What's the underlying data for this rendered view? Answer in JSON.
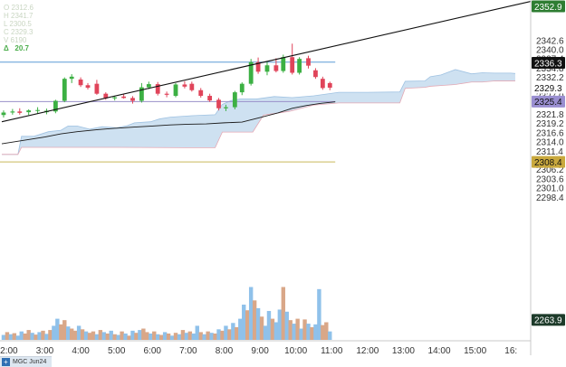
{
  "ohlc_readout": {
    "open": "O 2312.6",
    "high": "H 2341.7",
    "low": "L 2300.5",
    "close": "C 2329.3",
    "volume": "V 6190",
    "delta_symbol": "Δ",
    "delta": "20.7"
  },
  "symbol_bar": {
    "label": "MGC Jun24"
  },
  "colors": {
    "bullish": "#3cb043",
    "bearish": "#e0445a",
    "cloud": "#c6dcef",
    "cloud_edge": "#e4a8b4",
    "baseline": "#1a1a1a",
    "trendline": "#111111",
    "hline_blue": "#5b9bd5",
    "hline_purple": "#9a90c8",
    "hline_gold": "#c9b95a",
    "volume_up": "#8fc1ea",
    "volume_down": "#d9a788"
  },
  "chart_data": {
    "type": "candlestick",
    "y_axis": {
      "range": [
        2258,
        2354
      ],
      "ticks": [
        2342.6,
        2340.0,
        2337.4,
        2334.8,
        2332.2,
        2329.6,
        2327.0,
        2324.4,
        2321.8,
        2319.2,
        2316.6,
        2314.0,
        2311.4,
        2308.8,
        2306.2,
        2303.6,
        2301.0,
        2298.4
      ],
      "tick_labels": [
        "2342.6",
        "2340.0",
        "2337.4",
        "2334.8",
        "2332.2",
        "",
        "2327.0",
        "",
        "2321.8",
        "2319.2",
        "2316.6",
        "2314.0",
        "2311.4",
        "",
        "2306.2",
        "2303.6",
        "2301.0",
        "2298.4"
      ]
    },
    "price_tags": [
      {
        "value": 2352.9,
        "label": "2352.9",
        "style": "green"
      },
      {
        "value": 2336.3,
        "label": "2336.3",
        "style": "black"
      },
      {
        "value": 2329.3,
        "label": "2329.3",
        "style": "plain"
      },
      {
        "value": 2325.4,
        "label": "2325.4",
        "style": "purple"
      },
      {
        "value": 2308.4,
        "label": "2308.4",
        "style": "gold"
      },
      {
        "value": 2263.9,
        "label": "2263.9",
        "style": "dark"
      }
    ],
    "x_axis": {
      "range": [
        1.75,
        16.55
      ],
      "ticks": [
        2,
        3,
        4,
        5,
        6,
        7,
        8,
        9,
        10,
        11,
        12,
        13,
        14,
        15,
        16
      ],
      "tick_labels": [
        "2:00",
        "3:00",
        "4:00",
        "5:00",
        "6:00",
        "7:00",
        "8:00",
        "9:00",
        "10:00",
        "11:00",
        "12:00",
        "13:00",
        "14:00",
        "15:00",
        "16:"
      ]
    },
    "horizontal_lines": [
      {
        "value": 2336.5,
        "color_key": "hline_blue",
        "x_end": 11.1
      },
      {
        "value": 2325.4,
        "color_key": "hline_purple",
        "x_end": 11.1
      },
      {
        "value": 2308.4,
        "color_key": "hline_gold",
        "x_end": 11.1
      }
    ],
    "trendline": {
      "from": [
        1.8,
        2319.7
      ],
      "to": [
        16.55,
        2353.6
      ]
    },
    "candles": [
      {
        "t": 1.85,
        "o": 2321.6,
        "h": 2322.9,
        "l": 2320.9,
        "c": 2322.3
      },
      {
        "t": 2.1,
        "o": 2322.3,
        "h": 2323.3,
        "l": 2321.7,
        "c": 2322.6
      },
      {
        "t": 2.3,
        "o": 2322.6,
        "h": 2323.5,
        "l": 2321.7,
        "c": 2322.2
      },
      {
        "t": 2.55,
        "o": 2322.4,
        "h": 2323.2,
        "l": 2321.6,
        "c": 2322.9
      },
      {
        "t": 2.8,
        "o": 2322.9,
        "h": 2323.8,
        "l": 2322.0,
        "c": 2323.0
      },
      {
        "t": 3.05,
        "o": 2322.4,
        "h": 2323.4,
        "l": 2321.8,
        "c": 2322.8
      },
      {
        "t": 3.3,
        "o": 2322.6,
        "h": 2325.9,
        "l": 2322.1,
        "c": 2325.6
      },
      {
        "t": 3.55,
        "o": 2325.6,
        "h": 2332.2,
        "l": 2325.2,
        "c": 2331.8
      },
      {
        "t": 3.75,
        "o": 2331.8,
        "h": 2333.1,
        "l": 2330.6,
        "c": 2332.4
      },
      {
        "t": 4.0,
        "o": 2331.6,
        "h": 2332.2,
        "l": 2329.5,
        "c": 2330.0
      },
      {
        "t": 4.2,
        "o": 2330.0,
        "h": 2330.6,
        "l": 2328.8,
        "c": 2329.3
      },
      {
        "t": 4.45,
        "o": 2330.4,
        "h": 2331.5,
        "l": 2327.3,
        "c": 2327.6
      },
      {
        "t": 4.7,
        "o": 2327.6,
        "h": 2328.0,
        "l": 2325.9,
        "c": 2326.3
      },
      {
        "t": 4.95,
        "o": 2326.3,
        "h": 2327.0,
        "l": 2325.7,
        "c": 2326.6
      },
      {
        "t": 5.2,
        "o": 2326.8,
        "h": 2327.4,
        "l": 2326.2,
        "c": 2326.4
      },
      {
        "t": 5.45,
        "o": 2326.4,
        "h": 2326.9,
        "l": 2324.8,
        "c": 2325.6
      },
      {
        "t": 5.7,
        "o": 2325.6,
        "h": 2330.6,
        "l": 2325.1,
        "c": 2329.4
      },
      {
        "t": 5.9,
        "o": 2329.4,
        "h": 2331.0,
        "l": 2328.9,
        "c": 2330.3
      },
      {
        "t": 6.15,
        "o": 2330.3,
        "h": 2330.9,
        "l": 2327.1,
        "c": 2327.6
      },
      {
        "t": 6.4,
        "o": 2327.6,
        "h": 2328.2,
        "l": 2326.6,
        "c": 2327.3
      },
      {
        "t": 6.65,
        "o": 2327.0,
        "h": 2330.6,
        "l": 2326.6,
        "c": 2330.2
      },
      {
        "t": 6.9,
        "o": 2330.2,
        "h": 2331.1,
        "l": 2329.1,
        "c": 2329.6
      },
      {
        "t": 7.1,
        "o": 2330.4,
        "h": 2331.0,
        "l": 2328.2,
        "c": 2328.6
      },
      {
        "t": 7.35,
        "o": 2328.6,
        "h": 2329.2,
        "l": 2326.5,
        "c": 2327.0
      },
      {
        "t": 7.6,
        "o": 2327.0,
        "h": 2327.6,
        "l": 2325.3,
        "c": 2325.7
      },
      {
        "t": 7.85,
        "o": 2325.9,
        "h": 2326.4,
        "l": 2322.9,
        "c": 2323.5
      },
      {
        "t": 8.05,
        "o": 2323.5,
        "h": 2324.5,
        "l": 2322.7,
        "c": 2323.8
      },
      {
        "t": 8.3,
        "o": 2323.8,
        "h": 2328.4,
        "l": 2323.2,
        "c": 2328.0
      },
      {
        "t": 8.5,
        "o": 2328.0,
        "h": 2330.8,
        "l": 2327.2,
        "c": 2330.4
      },
      {
        "t": 8.75,
        "o": 2330.4,
        "h": 2337.4,
        "l": 2329.9,
        "c": 2336.5
      },
      {
        "t": 8.95,
        "o": 2336.5,
        "h": 2337.8,
        "l": 2333.2,
        "c": 2333.8
      },
      {
        "t": 9.2,
        "o": 2333.8,
        "h": 2336.6,
        "l": 2332.8,
        "c": 2335.6
      },
      {
        "t": 9.45,
        "o": 2335.6,
        "h": 2337.6,
        "l": 2333.6,
        "c": 2334.0
      },
      {
        "t": 9.65,
        "o": 2334.0,
        "h": 2338.6,
        "l": 2333.5,
        "c": 2337.9
      },
      {
        "t": 9.9,
        "o": 2337.9,
        "h": 2341.7,
        "l": 2333.0,
        "c": 2333.5
      },
      {
        "t": 10.1,
        "o": 2333.5,
        "h": 2337.9,
        "l": 2333.0,
        "c": 2337.4
      },
      {
        "t": 10.35,
        "o": 2337.6,
        "h": 2338.3,
        "l": 2334.7,
        "c": 2335.5
      },
      {
        "t": 10.55,
        "o": 2334.2,
        "h": 2334.8,
        "l": 2331.8,
        "c": 2332.3
      },
      {
        "t": 10.75,
        "o": 2331.8,
        "h": 2332.4,
        "l": 2328.7,
        "c": 2329.2
      },
      {
        "t": 10.95,
        "o": 2330.6,
        "h": 2331.0,
        "l": 2328.6,
        "c": 2329.3
      }
    ],
    "cloud": {
      "upper": [
        [
          1.8,
          2310.5
        ],
        [
          2.25,
          2310.5
        ],
        [
          2.35,
          2315.6
        ],
        [
          2.7,
          2315.6
        ],
        [
          3.1,
          2316.9
        ],
        [
          3.45,
          2317.3
        ],
        [
          3.65,
          2318.5
        ],
        [
          3.9,
          2318.5
        ],
        [
          4.25,
          2317.6
        ],
        [
          4.6,
          2318.3
        ],
        [
          5.0,
          2318.0
        ],
        [
          5.3,
          2318.6
        ],
        [
          5.5,
          2319.4
        ],
        [
          5.95,
          2319.7
        ],
        [
          6.2,
          2320.5
        ],
        [
          6.5,
          2321.0
        ],
        [
          7.1,
          2321.4
        ],
        [
          7.75,
          2321.7
        ],
        [
          7.95,
          2324.6
        ],
        [
          8.2,
          2325.7
        ],
        [
          8.45,
          2326.1
        ],
        [
          8.9,
          2326.1
        ],
        [
          9.4,
          2326.8
        ],
        [
          9.9,
          2326.5
        ],
        [
          10.5,
          2327.0
        ],
        [
          11.2,
          2328.0
        ],
        [
          12.0,
          2328.0
        ],
        [
          12.9,
          2328.1
        ],
        [
          13.05,
          2331.1
        ],
        [
          13.6,
          2331.2
        ],
        [
          13.75,
          2332.4
        ],
        [
          14.05,
          2332.9
        ],
        [
          14.45,
          2334.4
        ],
        [
          14.9,
          2333.2
        ],
        [
          15.2,
          2333.5
        ],
        [
          15.55,
          2333.4
        ],
        [
          16.0,
          2333.4
        ],
        [
          16.12,
          2333.3
        ]
      ],
      "lower": [
        [
          1.8,
          2310.5
        ],
        [
          2.25,
          2310.5
        ],
        [
          2.35,
          2312.5
        ],
        [
          4.5,
          2312.5
        ],
        [
          5.0,
          2312.5
        ],
        [
          6.9,
          2312.4
        ],
        [
          7.75,
          2312.4
        ],
        [
          7.95,
          2316.8
        ],
        [
          8.8,
          2316.8
        ],
        [
          9.1,
          2321.6
        ],
        [
          9.8,
          2322.6
        ],
        [
          10.5,
          2324.4
        ],
        [
          11.2,
          2325.0
        ],
        [
          12.0,
          2325.0
        ],
        [
          12.9,
          2325.0
        ],
        [
          13.05,
          2329.1
        ],
        [
          13.6,
          2329.4
        ],
        [
          13.75,
          2329.7
        ],
        [
          14.05,
          2329.9
        ],
        [
          14.45,
          2330.2
        ],
        [
          14.9,
          2330.9
        ],
        [
          15.2,
          2330.9
        ],
        [
          15.55,
          2331.2
        ],
        [
          16.12,
          2331.2
        ]
      ]
    },
    "baseline": [
      [
        1.8,
        2313.5
      ],
      [
        2.5,
        2314.6
      ],
      [
        3.0,
        2315.4
      ],
      [
        3.45,
        2316.3
      ],
      [
        3.9,
        2316.9
      ],
      [
        4.5,
        2317.5
      ],
      [
        5.0,
        2317.9
      ],
      [
        5.5,
        2318.2
      ],
      [
        6.0,
        2318.5
      ],
      [
        6.5,
        2318.8
      ],
      [
        7.0,
        2319.0
      ],
      [
        7.5,
        2319.1
      ],
      [
        8.0,
        2319.4
      ],
      [
        8.5,
        2319.6
      ],
      [
        9.05,
        2321.0
      ],
      [
        9.5,
        2322.2
      ],
      [
        9.9,
        2323.5
      ],
      [
        10.3,
        2324.3
      ],
      [
        10.7,
        2324.9
      ],
      [
        11.1,
        2325.3
      ]
    ],
    "volume": {
      "y_range": [
        0,
        1000
      ],
      "bars": [
        {
          "t": 1.85,
          "v": 70,
          "up": true
        },
        {
          "t": 1.95,
          "v": 110,
          "up": false
        },
        {
          "t": 2.05,
          "v": 80,
          "up": true
        },
        {
          "t": 2.15,
          "v": 95,
          "up": false
        },
        {
          "t": 2.25,
          "v": 60,
          "up": true
        },
        {
          "t": 2.35,
          "v": 120,
          "up": true
        },
        {
          "t": 2.45,
          "v": 90,
          "up": false
        },
        {
          "t": 2.55,
          "v": 140,
          "up": false
        },
        {
          "t": 2.65,
          "v": 100,
          "up": true
        },
        {
          "t": 2.75,
          "v": 75,
          "up": false
        },
        {
          "t": 2.85,
          "v": 110,
          "up": true
        },
        {
          "t": 2.95,
          "v": 130,
          "up": false
        },
        {
          "t": 3.05,
          "v": 85,
          "up": true
        },
        {
          "t": 3.15,
          "v": 140,
          "up": false
        },
        {
          "t": 3.25,
          "v": 200,
          "up": true
        },
        {
          "t": 3.35,
          "v": 300,
          "up": true
        },
        {
          "t": 3.45,
          "v": 220,
          "up": false
        },
        {
          "t": 3.55,
          "v": 280,
          "up": false
        },
        {
          "t": 3.65,
          "v": 190,
          "up": true
        },
        {
          "t": 3.75,
          "v": 160,
          "up": false
        },
        {
          "t": 3.85,
          "v": 130,
          "up": false
        },
        {
          "t": 3.95,
          "v": 200,
          "up": true
        },
        {
          "t": 4.05,
          "v": 150,
          "up": false
        },
        {
          "t": 4.15,
          "v": 120,
          "up": true
        },
        {
          "t": 4.25,
          "v": 100,
          "up": false
        },
        {
          "t": 4.35,
          "v": 120,
          "up": false
        },
        {
          "t": 4.45,
          "v": 80,
          "up": true
        },
        {
          "t": 4.55,
          "v": 140,
          "up": false
        },
        {
          "t": 4.65,
          "v": 110,
          "up": true
        },
        {
          "t": 4.75,
          "v": 90,
          "up": false
        },
        {
          "t": 4.85,
          "v": 130,
          "up": true
        },
        {
          "t": 4.95,
          "v": 80,
          "up": false
        },
        {
          "t": 5.05,
          "v": 70,
          "up": true
        },
        {
          "t": 5.15,
          "v": 120,
          "up": false
        },
        {
          "t": 5.25,
          "v": 90,
          "up": true
        },
        {
          "t": 5.35,
          "v": 60,
          "up": false
        },
        {
          "t": 5.45,
          "v": 130,
          "up": true
        },
        {
          "t": 5.55,
          "v": 100,
          "up": false
        },
        {
          "t": 5.65,
          "v": 140,
          "up": true
        },
        {
          "t": 5.75,
          "v": 160,
          "up": false
        },
        {
          "t": 5.85,
          "v": 110,
          "up": false
        },
        {
          "t": 5.95,
          "v": 90,
          "up": true
        },
        {
          "t": 6.05,
          "v": 120,
          "up": false
        },
        {
          "t": 6.15,
          "v": 80,
          "up": true
        },
        {
          "t": 6.25,
          "v": 70,
          "up": false
        },
        {
          "t": 6.35,
          "v": 110,
          "up": true
        },
        {
          "t": 6.45,
          "v": 90,
          "up": false
        },
        {
          "t": 6.55,
          "v": 60,
          "up": true
        },
        {
          "t": 6.65,
          "v": 100,
          "up": false
        },
        {
          "t": 6.75,
          "v": 80,
          "up": true
        },
        {
          "t": 6.85,
          "v": 140,
          "up": false
        },
        {
          "t": 6.95,
          "v": 100,
          "up": true
        },
        {
          "t": 7.05,
          "v": 120,
          "up": false
        },
        {
          "t": 7.15,
          "v": 90,
          "up": true
        },
        {
          "t": 7.25,
          "v": 200,
          "up": true
        },
        {
          "t": 7.35,
          "v": 110,
          "up": false
        },
        {
          "t": 7.45,
          "v": 80,
          "up": true
        },
        {
          "t": 7.55,
          "v": 120,
          "up": false
        },
        {
          "t": 7.65,
          "v": 100,
          "up": true
        },
        {
          "t": 7.75,
          "v": 90,
          "up": false
        },
        {
          "t": 7.85,
          "v": 150,
          "up": true
        },
        {
          "t": 7.95,
          "v": 130,
          "up": false
        },
        {
          "t": 8.05,
          "v": 200,
          "up": true
        },
        {
          "t": 8.15,
          "v": 150,
          "up": false
        },
        {
          "t": 8.25,
          "v": 240,
          "up": true
        },
        {
          "t": 8.35,
          "v": 180,
          "up": false
        },
        {
          "t": 8.45,
          "v": 300,
          "up": true
        },
        {
          "t": 8.55,
          "v": 500,
          "up": true
        },
        {
          "t": 8.65,
          "v": 420,
          "up": false
        },
        {
          "t": 8.75,
          "v": 750,
          "up": true
        },
        {
          "t": 8.85,
          "v": 560,
          "up": false
        },
        {
          "t": 8.95,
          "v": 450,
          "up": true
        },
        {
          "t": 9.05,
          "v": 330,
          "up": false
        },
        {
          "t": 9.15,
          "v": 200,
          "up": true
        },
        {
          "t": 9.25,
          "v": 410,
          "up": true
        },
        {
          "t": 9.35,
          "v": 300,
          "up": false
        },
        {
          "t": 9.45,
          "v": 250,
          "up": true
        },
        {
          "t": 9.55,
          "v": 430,
          "up": true
        },
        {
          "t": 9.65,
          "v": 750,
          "up": false
        },
        {
          "t": 9.75,
          "v": 400,
          "up": true
        },
        {
          "t": 9.85,
          "v": 280,
          "up": false
        },
        {
          "t": 9.95,
          "v": 230,
          "up": true
        },
        {
          "t": 10.05,
          "v": 300,
          "up": false
        },
        {
          "t": 10.15,
          "v": 160,
          "up": true
        },
        {
          "t": 10.25,
          "v": 290,
          "up": false
        },
        {
          "t": 10.35,
          "v": 230,
          "up": true
        },
        {
          "t": 10.45,
          "v": 180,
          "up": false
        },
        {
          "t": 10.55,
          "v": 220,
          "up": true
        },
        {
          "t": 10.65,
          "v": 720,
          "up": true
        },
        {
          "t": 10.75,
          "v": 210,
          "up": false
        },
        {
          "t": 10.85,
          "v": 250,
          "up": false
        },
        {
          "t": 10.95,
          "v": 120,
          "up": true
        }
      ]
    },
    "title": "",
    "xlabel": "",
    "ylabel": "",
    "grid": false,
    "legend": "none"
  }
}
